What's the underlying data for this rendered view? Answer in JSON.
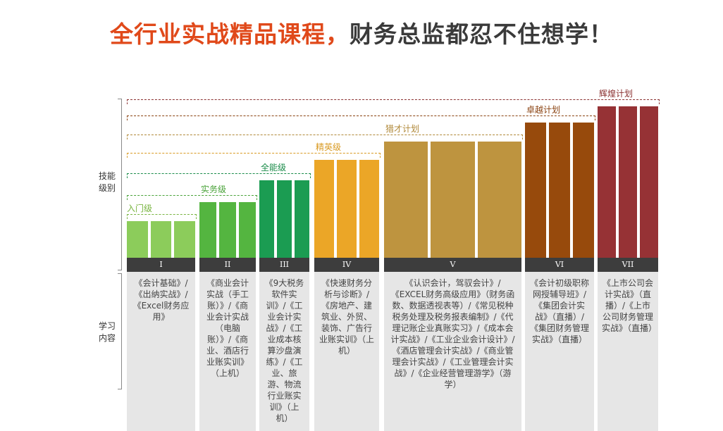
{
  "title": {
    "highlight": "全行业实战精品课程，",
    "rest": "财务总监都忍不住想学！"
  },
  "side_labels": {
    "skill": "技能\n级别",
    "content": "学习\n内容"
  },
  "levels": [
    {
      "roman": "I",
      "label": "入门级",
      "color": "#8ccc5b",
      "label_color": "#7ab542",
      "content": "《会计基础》/《出纳实战》/《Excel财务应用》"
    },
    {
      "roman": "II",
      "label": "实务级",
      "color": "#54b540",
      "label_color": "#4aa33a",
      "content": "《商业会计实战（手工账）》/《商业会计实战（电脑账）》/《商业、酒店行业账实训》（上机）"
    },
    {
      "roman": "III",
      "label": "全能级",
      "color": "#1b9c52",
      "label_color": "#1b8c4a",
      "content": "《9大税务软件实训》/《工业会计实战》/《工业成本核算沙盘演练》/《工业、旅游、物流行业账实训》（上机）"
    },
    {
      "roman": "IV",
      "label": "精英级",
      "color": "#eba627",
      "label_color": "#d99a22",
      "content": "《快速财务分析与诊断》/《房地产、建筑业、外贸、装饰、广告行业账实训》（上机）"
    },
    {
      "roman": "V",
      "label": "猎才计划",
      "color": "#be943f",
      "label_color": "#b08838",
      "content": "《认识会计，驾驭会计》/《EXCEL财务高级应用》（财务函数、数据透视表等）/《常见税种税务处理及税务报表编制》/《代理记账企业真账实习》/《成本会计实战》/《工业企业会计设计》/《酒店管理会计实战》/《商业管理会计实战》/《工业管理会计实战》/《企业经营管理游学》（游学）"
    },
    {
      "roman": "VI",
      "label": "卓越计划",
      "color": "#974a0c",
      "label_color": "#8a4210",
      "content": "《会计初级职称网授辅导班》/《集团会计实战》（直播）/《集团财务管理实战》（直播）"
    },
    {
      "roman": "VII",
      "label": "辉煌计划",
      "color": "#963235",
      "label_color": "#8a3030",
      "content": "《上市公司会计实战》（直播）/《上市公司财务管理实战》（直播）"
    }
  ]
}
